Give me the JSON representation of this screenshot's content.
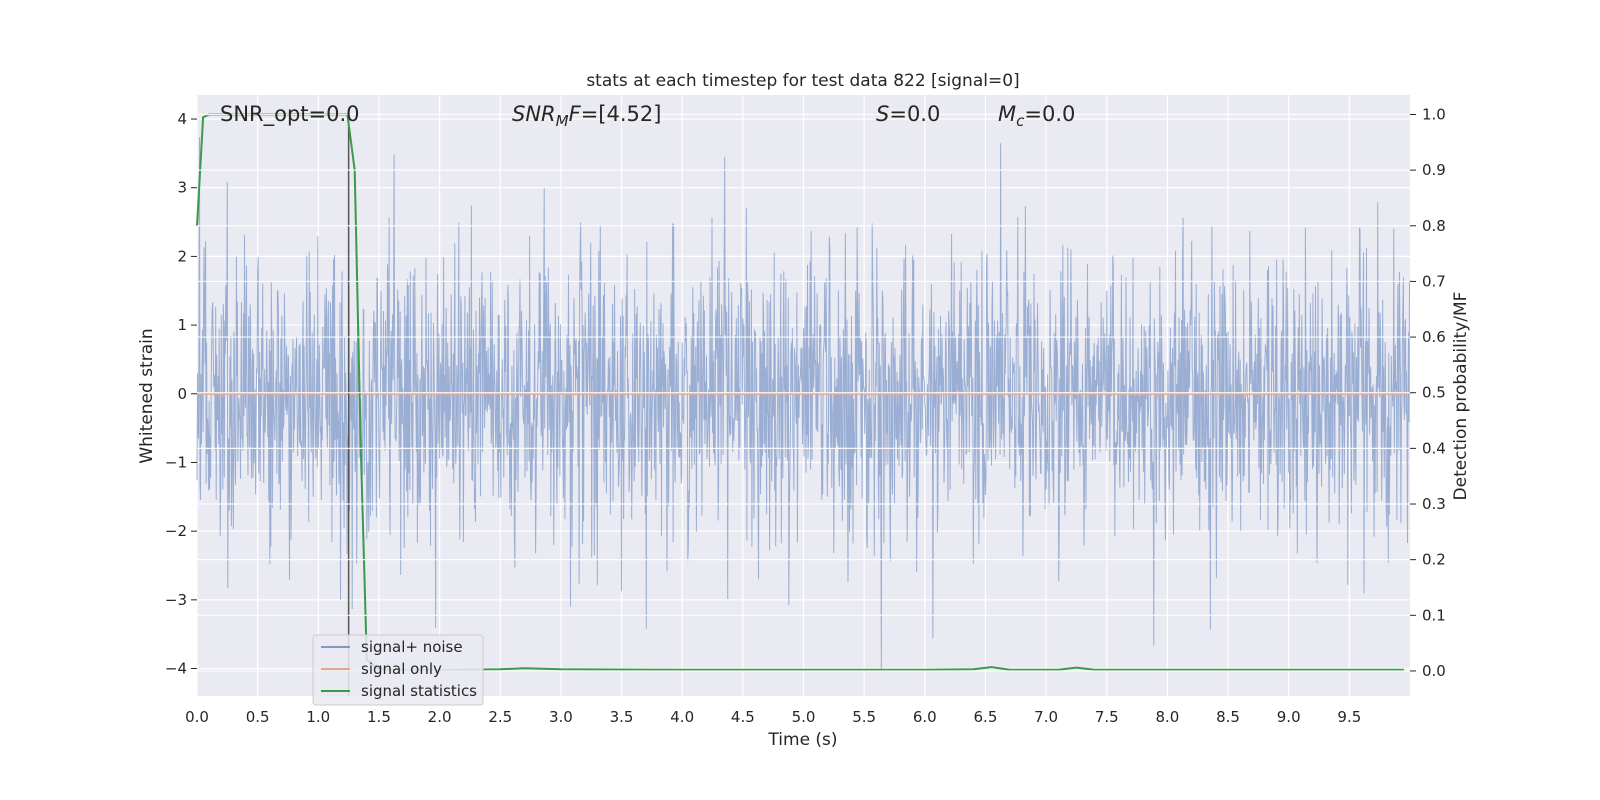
{
  "chart_data": {
    "type": "line",
    "title": "stats at each timestep for test data 822 [signal=0]",
    "xlabel": "Time (s)",
    "ylabel_left": "Whitened strain",
    "ylabel_right": "Detection probability/MF",
    "xlim": [
      0.0,
      10.0
    ],
    "ylim_left": [
      -4.4,
      4.35
    ],
    "ylim_right": [
      -0.045,
      1.035
    ],
    "xticks": [
      "0.0",
      "0.5",
      "1.0",
      "1.5",
      "2.0",
      "2.5",
      "3.0",
      "3.5",
      "4.0",
      "4.5",
      "5.0",
      "5.5",
      "6.0",
      "6.5",
      "7.0",
      "7.5",
      "8.0",
      "8.5",
      "9.0",
      "9.5"
    ],
    "yticks_left": [
      "4",
      "3",
      "2",
      "1",
      "0",
      "−1",
      "−2",
      "−3",
      "−4"
    ],
    "yticks_right": [
      "1.0",
      "0.9",
      "0.8",
      "0.7",
      "0.6",
      "0.5",
      "0.4",
      "0.3",
      "0.2",
      "0.1",
      "0.0"
    ],
    "grid": true,
    "legend_position": "lower-left",
    "annotations": {
      "snr_opt": "SNR_opt=0.0",
      "snr_mf": "[4.52]",
      "s": "=0.0",
      "mc": "=0.0"
    },
    "vertical_marker_x": 1.25,
    "series": [
      {
        "name": "signal+ noise",
        "color": "#7f9ac8",
        "axis": "left",
        "description_values": "Gaussian whitened noise, roughly within ±2.8, peaks to ±4"
      },
      {
        "name": "signal only",
        "color": "#e8a58a",
        "axis": "left",
        "y_constant": 0.0
      },
      {
        "name": "signal statistics",
        "color": "#3a9a4c",
        "axis": "right",
        "x": [
          0.0,
          0.05,
          0.1,
          0.2,
          0.5,
          1.0,
          1.24,
          1.3,
          1.35,
          1.4,
          1.5,
          1.8,
          2.2,
          2.5,
          2.7,
          3.0,
          4.0,
          5.0,
          6.0,
          6.4,
          6.55,
          6.7,
          7.1,
          7.25,
          7.4,
          8.0,
          9.0,
          9.95
        ],
        "y": [
          0.8,
          0.995,
          1.0,
          1.0,
          1.0,
          1.0,
          1.0,
          0.9,
          0.4,
          0.02,
          0.003,
          0.001,
          0.002,
          0.003,
          0.005,
          0.003,
          0.002,
          0.002,
          0.002,
          0.003,
          0.007,
          0.002,
          0.002,
          0.006,
          0.002,
          0.002,
          0.002,
          0.002
        ]
      }
    ]
  },
  "colors": {
    "background": "#eaeaf2",
    "grid": "#ffffff",
    "noise": "#7f9ac8",
    "signal_only": "#e8a58a",
    "statistics": "#3a9a4c",
    "marker": "#555555"
  }
}
